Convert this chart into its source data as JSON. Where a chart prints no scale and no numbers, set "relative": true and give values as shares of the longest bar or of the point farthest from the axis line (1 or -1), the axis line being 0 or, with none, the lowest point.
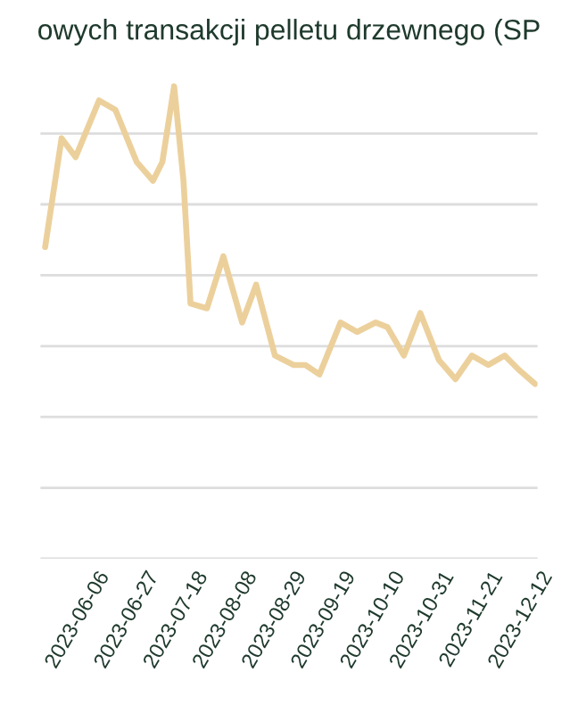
{
  "chart_data": {
    "type": "line",
    "title": "owych transakcji pelletu drzewnego (SP",
    "relative": true,
    "x": [
      "2023-05-23",
      "2023-05-30",
      "2023-06-05",
      "2023-06-15",
      "2023-06-22",
      "2023-07-01",
      "2023-07-08",
      "2023-07-12",
      "2023-07-17",
      "2023-07-21",
      "2023-07-24",
      "2023-07-31",
      "2023-08-07",
      "2023-08-15",
      "2023-08-21",
      "2023-08-29",
      "2023-09-06",
      "2023-09-11",
      "2023-09-17",
      "2023-09-26",
      "2023-10-03",
      "2023-10-11",
      "2023-10-16",
      "2023-10-23",
      "2023-10-30",
      "2023-11-07",
      "2023-11-14",
      "2023-11-21",
      "2023-11-28",
      "2023-12-05",
      "2023-12-11",
      "2023-12-18"
    ],
    "series": [
      {
        "color": "#ecd09c",
        "values": [
          0.66,
          0.89,
          0.85,
          0.97,
          0.95,
          0.84,
          0.8,
          0.84,
          1.0,
          0.8,
          0.54,
          0.53,
          0.64,
          0.5,
          0.58,
          0.43,
          0.41,
          0.41,
          0.39,
          0.5,
          0.48,
          0.5,
          0.49,
          0.43,
          0.52,
          0.42,
          0.38,
          0.43,
          0.41,
          0.43,
          0.4,
          0.37
        ]
      }
    ],
    "xlim": [
      "2023-05-21",
      "2023-12-19"
    ],
    "xticks": [
      "2023-06-06",
      "2023-06-27",
      "2023-07-18",
      "2023-08-08",
      "2023-08-29",
      "2023-09-19",
      "2023-10-10",
      "2023-10-31",
      "2023-11-21",
      "2023-12-12"
    ],
    "grid": "y",
    "marker": "none",
    "line_style": "solid",
    "legend": false
  }
}
